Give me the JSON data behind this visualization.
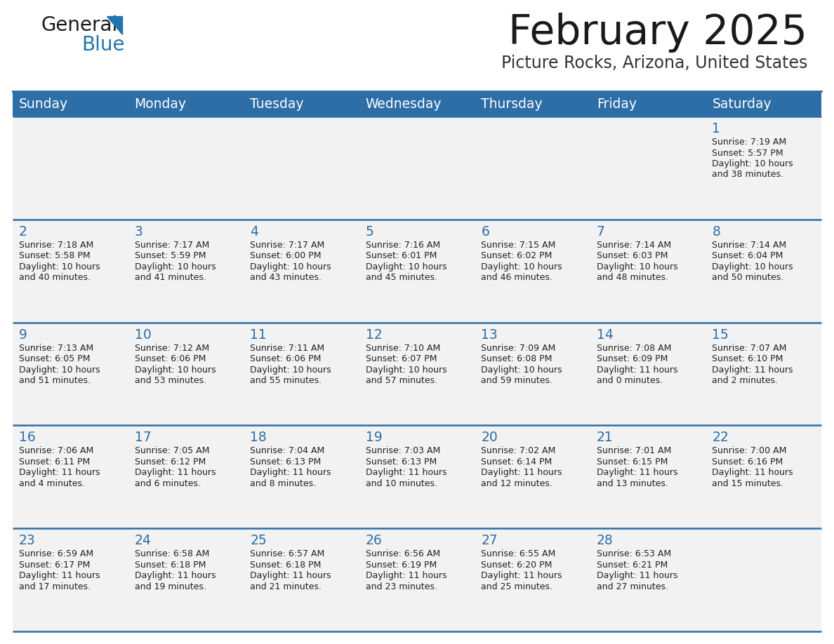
{
  "title": "February 2025",
  "subtitle": "Picture Rocks, Arizona, United States",
  "header_bg_color": "#2E6EA6",
  "header_text_color": "#FFFFFF",
  "day_names": [
    "Sunday",
    "Monday",
    "Tuesday",
    "Wednesday",
    "Thursday",
    "Friday",
    "Saturday"
  ],
  "cell_bg": "#F2F2F2",
  "title_color": "#1a1a1a",
  "subtitle_color": "#333333",
  "date_color": "#2E6EA6",
  "info_color": "#222222",
  "line_color": "#2E6EA6",
  "calendar": [
    [
      null,
      null,
      null,
      null,
      null,
      null,
      {
        "day": 1,
        "sunrise": "7:19 AM",
        "sunset": "5:57 PM",
        "daylight": "10 hours and 38 minutes."
      }
    ],
    [
      {
        "day": 2,
        "sunrise": "7:18 AM",
        "sunset": "5:58 PM",
        "daylight": "10 hours and 40 minutes."
      },
      {
        "day": 3,
        "sunrise": "7:17 AM",
        "sunset": "5:59 PM",
        "daylight": "10 hours and 41 minutes."
      },
      {
        "day": 4,
        "sunrise": "7:17 AM",
        "sunset": "6:00 PM",
        "daylight": "10 hours and 43 minutes."
      },
      {
        "day": 5,
        "sunrise": "7:16 AM",
        "sunset": "6:01 PM",
        "daylight": "10 hours and 45 minutes."
      },
      {
        "day": 6,
        "sunrise": "7:15 AM",
        "sunset": "6:02 PM",
        "daylight": "10 hours and 46 minutes."
      },
      {
        "day": 7,
        "sunrise": "7:14 AM",
        "sunset": "6:03 PM",
        "daylight": "10 hours and 48 minutes."
      },
      {
        "day": 8,
        "sunrise": "7:14 AM",
        "sunset": "6:04 PM",
        "daylight": "10 hours and 50 minutes."
      }
    ],
    [
      {
        "day": 9,
        "sunrise": "7:13 AM",
        "sunset": "6:05 PM",
        "daylight": "10 hours and 51 minutes."
      },
      {
        "day": 10,
        "sunrise": "7:12 AM",
        "sunset": "6:06 PM",
        "daylight": "10 hours and 53 minutes."
      },
      {
        "day": 11,
        "sunrise": "7:11 AM",
        "sunset": "6:06 PM",
        "daylight": "10 hours and 55 minutes."
      },
      {
        "day": 12,
        "sunrise": "7:10 AM",
        "sunset": "6:07 PM",
        "daylight": "10 hours and 57 minutes."
      },
      {
        "day": 13,
        "sunrise": "7:09 AM",
        "sunset": "6:08 PM",
        "daylight": "10 hours and 59 minutes."
      },
      {
        "day": 14,
        "sunrise": "7:08 AM",
        "sunset": "6:09 PM",
        "daylight": "11 hours and 0 minutes."
      },
      {
        "day": 15,
        "sunrise": "7:07 AM",
        "sunset": "6:10 PM",
        "daylight": "11 hours and 2 minutes."
      }
    ],
    [
      {
        "day": 16,
        "sunrise": "7:06 AM",
        "sunset": "6:11 PM",
        "daylight": "11 hours and 4 minutes."
      },
      {
        "day": 17,
        "sunrise": "7:05 AM",
        "sunset": "6:12 PM",
        "daylight": "11 hours and 6 minutes."
      },
      {
        "day": 18,
        "sunrise": "7:04 AM",
        "sunset": "6:13 PM",
        "daylight": "11 hours and 8 minutes."
      },
      {
        "day": 19,
        "sunrise": "7:03 AM",
        "sunset": "6:13 PM",
        "daylight": "11 hours and 10 minutes."
      },
      {
        "day": 20,
        "sunrise": "7:02 AM",
        "sunset": "6:14 PM",
        "daylight": "11 hours and 12 minutes."
      },
      {
        "day": 21,
        "sunrise": "7:01 AM",
        "sunset": "6:15 PM",
        "daylight": "11 hours and 13 minutes."
      },
      {
        "day": 22,
        "sunrise": "7:00 AM",
        "sunset": "6:16 PM",
        "daylight": "11 hours and 15 minutes."
      }
    ],
    [
      {
        "day": 23,
        "sunrise": "6:59 AM",
        "sunset": "6:17 PM",
        "daylight": "11 hours and 17 minutes."
      },
      {
        "day": 24,
        "sunrise": "6:58 AM",
        "sunset": "6:18 PM",
        "daylight": "11 hours and 19 minutes."
      },
      {
        "day": 25,
        "sunrise": "6:57 AM",
        "sunset": "6:18 PM",
        "daylight": "11 hours and 21 minutes."
      },
      {
        "day": 26,
        "sunrise": "6:56 AM",
        "sunset": "6:19 PM",
        "daylight": "11 hours and 23 minutes."
      },
      {
        "day": 27,
        "sunrise": "6:55 AM",
        "sunset": "6:20 PM",
        "daylight": "11 hours and 25 minutes."
      },
      {
        "day": 28,
        "sunrise": "6:53 AM",
        "sunset": "6:21 PM",
        "daylight": "11 hours and 27 minutes."
      },
      null
    ]
  ]
}
